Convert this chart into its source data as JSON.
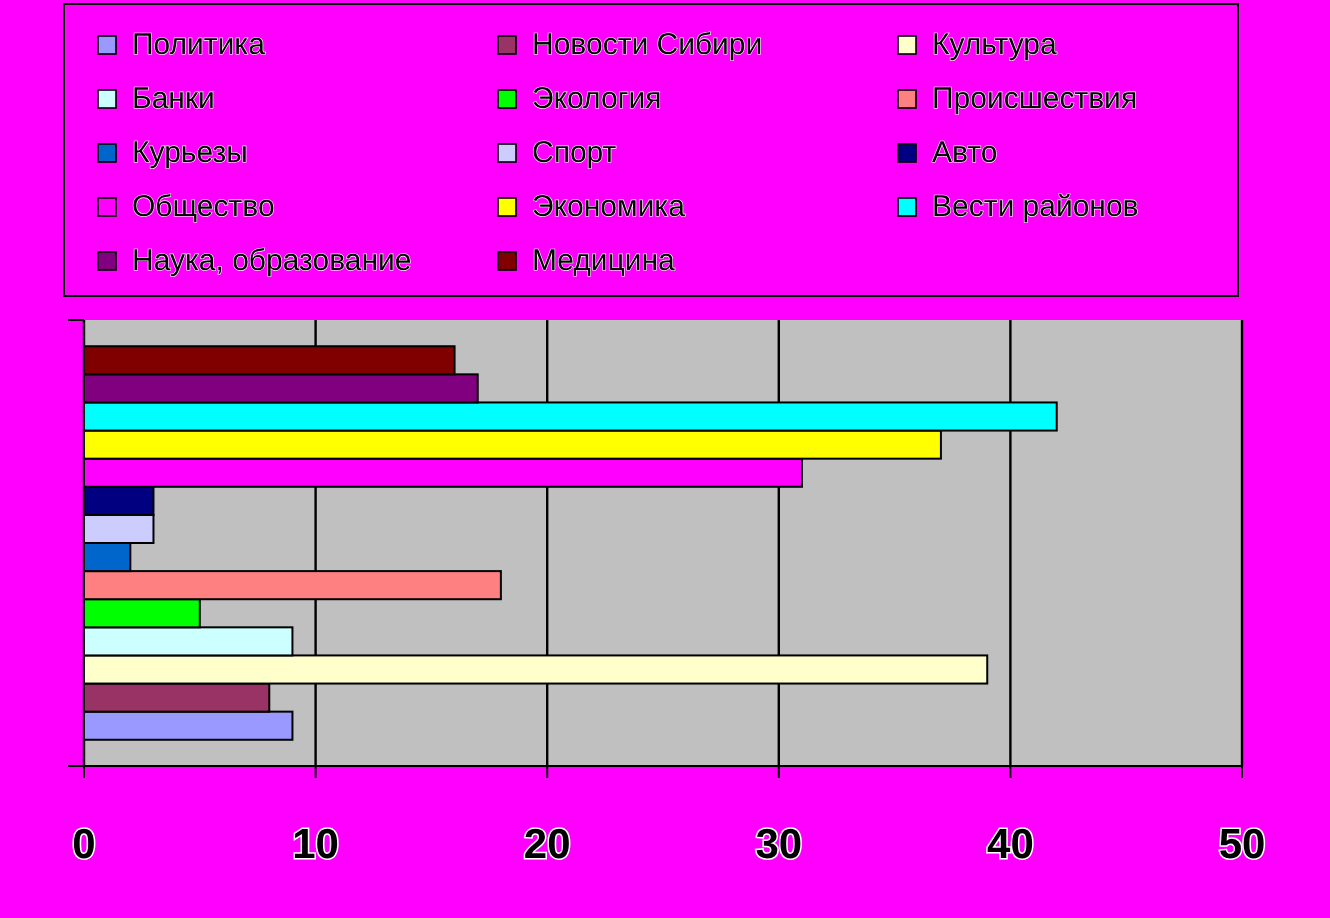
{
  "chart_data": {
    "type": "bar",
    "orientation": "horizontal",
    "categories": [
      null
    ],
    "xlim": [
      0,
      50
    ],
    "xticks": [
      0,
      10,
      20,
      30,
      40,
      50
    ],
    "grid": "x",
    "legend": "top",
    "series": [
      {
        "name": "Политика",
        "color": "#9999ff",
        "values": [
          9
        ]
      },
      {
        "name": "Новости Сибири",
        "color": "#993366",
        "values": [
          8
        ]
      },
      {
        "name": "Культура",
        "color": "#ffffcc",
        "values": [
          39
        ]
      },
      {
        "name": "Банки",
        "color": "#ccffff",
        "values": [
          9
        ]
      },
      {
        "name": "Экология",
        "color": "#00ff00",
        "values": [
          5
        ]
      },
      {
        "name": "Происшествия",
        "color": "#ff8080",
        "values": [
          18
        ]
      },
      {
        "name": "Курьезы",
        "color": "#0066cc",
        "values": [
          2
        ]
      },
      {
        "name": "Спорт",
        "color": "#ccccff",
        "values": [
          3
        ]
      },
      {
        "name": "Авто",
        "color": "#000080",
        "values": [
          3
        ]
      },
      {
        "name": "Общество",
        "color": "#ff00ff",
        "values": [
          31
        ]
      },
      {
        "name": "Экономика",
        "color": "#ffff00",
        "values": [
          37
        ]
      },
      {
        "name": "Вести районов",
        "color": "#00ffff",
        "values": [
          42
        ]
      },
      {
        "name": "Наука, образование",
        "color": "#800080",
        "values": [
          17
        ]
      },
      {
        "name": "Медицина",
        "color": "#800000",
        "values": [
          16
        ]
      }
    ]
  }
}
